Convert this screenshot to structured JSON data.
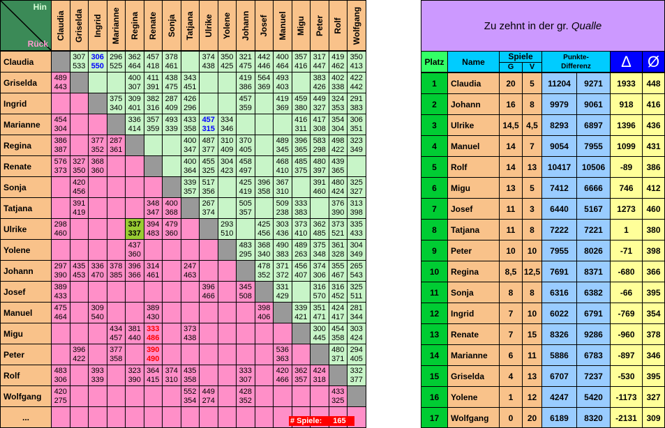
{
  "corner": {
    "top_label": "Hin",
    "bottom_label": "Rück"
  },
  "players": [
    "Claudia",
    "Griselda",
    "Ingrid",
    "Marianne",
    "Regina",
    "Renate",
    "Sonja",
    "Tatjana",
    "Ulrike",
    "Yolene",
    "Johann",
    "Josef",
    "Manuel",
    "Migu",
    "Peter",
    "Rolf",
    "Wolfgang"
  ],
  "ellipsis": "...",
  "games_footer": {
    "label": "# Spiele:",
    "value": "165"
  },
  "matrix": [
    [
      null,
      [
        "307",
        "533"
      ],
      [
        "306",
        "550"
      ],
      [
        "296",
        "525"
      ],
      [
        "362",
        "464"
      ],
      [
        "457",
        "418"
      ],
      [
        "378",
        "461"
      ],
      null,
      [
        "374",
        "438"
      ],
      [
        "350",
        "425"
      ],
      [
        "321",
        "475"
      ],
      [
        "442",
        "446"
      ],
      [
        "400",
        "464"
      ],
      [
        "357",
        "416"
      ],
      [
        "317",
        "447"
      ],
      [
        "419",
        "462"
      ],
      [
        "350",
        "413"
      ]
    ],
    [
      [
        "489",
        "443"
      ],
      null,
      null,
      null,
      [
        "400",
        "307"
      ],
      [
        "411",
        "391"
      ],
      [
        "438",
        "475"
      ],
      [
        "343",
        "451"
      ],
      null,
      null,
      [
        "419",
        "386"
      ],
      [
        "564",
        "369"
      ],
      [
        "493",
        "403"
      ],
      null,
      [
        "383",
        "426"
      ],
      [
        "402",
        "338"
      ],
      [
        "422",
        "442"
      ]
    ],
    [
      null,
      null,
      null,
      [
        "375",
        "340"
      ],
      [
        "309",
        "401"
      ],
      [
        "382",
        "316"
      ],
      [
        "287",
        "409"
      ],
      [
        "426",
        "296"
      ],
      null,
      null,
      [
        "457",
        "359"
      ],
      null,
      [
        "419",
        "369"
      ],
      [
        "459",
        "380"
      ],
      [
        "449",
        "327"
      ],
      [
        "324",
        "353"
      ],
      [
        "291",
        "383"
      ]
    ],
    [
      [
        "454",
        "304"
      ],
      null,
      null,
      null,
      [
        "336",
        "414"
      ],
      [
        "357",
        "359"
      ],
      [
        "493",
        "339"
      ],
      [
        "433",
        "358"
      ],
      [
        "457",
        "315"
      ],
      [
        "334",
        "346"
      ],
      null,
      null,
      null,
      [
        "416",
        "311"
      ],
      [
        "417",
        "308"
      ],
      [
        "354",
        "304"
      ],
      [
        "306",
        "351"
      ]
    ],
    [
      [
        "386",
        "387"
      ],
      null,
      [
        "377",
        "352"
      ],
      [
        "287",
        "361"
      ],
      null,
      null,
      null,
      [
        "400",
        "347"
      ],
      [
        "487",
        "377"
      ],
      [
        "310",
        "409"
      ],
      [
        "370",
        "405"
      ],
      null,
      [
        "489",
        "345"
      ],
      [
        "396",
        "365"
      ],
      [
        "583",
        "298"
      ],
      [
        "498",
        "422"
      ],
      [
        "323",
        "349"
      ]
    ],
    [
      [
        "576",
        "373"
      ],
      [
        "327",
        "350"
      ],
      [
        "368",
        "360"
      ],
      null,
      null,
      null,
      null,
      [
        "400",
        "364"
      ],
      [
        "455",
        "325"
      ],
      [
        "304",
        "423"
      ],
      [
        "458",
        "497"
      ],
      null,
      [
        "468",
        "410"
      ],
      [
        "485",
        "375"
      ],
      [
        "480",
        "397"
      ],
      [
        "439",
        "365"
      ],
      null
    ],
    [
      null,
      [
        "420",
        "456"
      ],
      null,
      null,
      null,
      null,
      null,
      [
        "339",
        "357"
      ],
      [
        "517",
        "356"
      ],
      null,
      [
        "425",
        "419"
      ],
      [
        "396",
        "358"
      ],
      [
        "367",
        "310"
      ],
      null,
      [
        "391",
        "460"
      ],
      [
        "480",
        "424"
      ],
      [
        "325",
        "327"
      ]
    ],
    [
      null,
      [
        "391",
        "419"
      ],
      null,
      null,
      null,
      [
        "348",
        "347"
      ],
      [
        "400",
        "368"
      ],
      null,
      [
        "267",
        "374"
      ],
      null,
      [
        "505",
        "357"
      ],
      null,
      [
        "509",
        "238"
      ],
      [
        "333",
        "383"
      ],
      null,
      [
        "376",
        "390"
      ],
      [
        "313",
        "398"
      ]
    ],
    [
      [
        "298",
        "460"
      ],
      null,
      null,
      null,
      [
        "337",
        "337"
      ],
      [
        "394",
        "483"
      ],
      [
        "479",
        "360"
      ],
      null,
      null,
      [
        "293",
        "510"
      ],
      null,
      [
        "425",
        "456"
      ],
      [
        "303",
        "436"
      ],
      [
        "373",
        "410"
      ],
      [
        "362",
        "485"
      ],
      [
        "373",
        "521"
      ],
      [
        "335",
        "433"
      ]
    ],
    [
      null,
      null,
      null,
      null,
      [
        "437",
        "360"
      ],
      null,
      null,
      null,
      null,
      null,
      [
        "483",
        "295"
      ],
      [
        "368",
        "340"
      ],
      [
        "490",
        "383"
      ],
      [
        "489",
        "263"
      ],
      [
        "375",
        "348"
      ],
      [
        "361",
        "328"
      ],
      [
        "304",
        "349"
      ]
    ],
    [
      [
        "297",
        "390"
      ],
      [
        "435",
        "453"
      ],
      [
        "336",
        "470"
      ],
      [
        "378",
        "385"
      ],
      [
        "396",
        "366"
      ],
      [
        "314",
        "461"
      ],
      null,
      [
        "247",
        "463"
      ],
      null,
      null,
      null,
      [
        "478",
        "352"
      ],
      [
        "371",
        "372"
      ],
      [
        "456",
        "407"
      ],
      [
        "374",
        "306"
      ],
      [
        "355",
        "467"
      ],
      [
        "265",
        "543"
      ]
    ],
    [
      [
        "389",
        "433"
      ],
      null,
      null,
      null,
      null,
      null,
      null,
      null,
      [
        "396",
        "466"
      ],
      null,
      [
        "345",
        "508"
      ],
      null,
      [
        "331",
        "429"
      ],
      null,
      [
        "316",
        "570"
      ],
      [
        "316",
        "452"
      ],
      [
        "325",
        "511"
      ]
    ],
    [
      [
        "475",
        "464"
      ],
      null,
      [
        "309",
        "540"
      ],
      null,
      null,
      [
        "389",
        "430"
      ],
      null,
      null,
      null,
      null,
      null,
      [
        "398",
        "406"
      ],
      null,
      [
        "339",
        "421"
      ],
      [
        "351",
        "471"
      ],
      [
        "424",
        "417"
      ],
      [
        "281",
        "344"
      ]
    ],
    [
      null,
      null,
      null,
      [
        "434",
        "457"
      ],
      [
        "381",
        "440"
      ],
      [
        "333",
        "486"
      ],
      null,
      [
        "373",
        "438"
      ],
      null,
      null,
      null,
      null,
      null,
      null,
      [
        "300",
        "445"
      ],
      [
        "454",
        "358"
      ],
      [
        "303",
        "424"
      ]
    ],
    [
      null,
      [
        "396",
        "422"
      ],
      null,
      [
        "377",
        "358"
      ],
      null,
      [
        "390",
        "490"
      ],
      null,
      null,
      null,
      null,
      null,
      null,
      [
        "536",
        "363"
      ],
      null,
      null,
      [
        "480",
        "371"
      ],
      [
        "294",
        "405"
      ]
    ],
    [
      [
        "483",
        "306"
      ],
      null,
      [
        "393",
        "339"
      ],
      null,
      [
        "323",
        "390"
      ],
      [
        "364",
        "415"
      ],
      [
        "374",
        "310"
      ],
      [
        "435",
        "358"
      ],
      null,
      null,
      [
        "333",
        "307"
      ],
      null,
      [
        "420",
        "466"
      ],
      [
        "362",
        "357"
      ],
      [
        "424",
        "318"
      ],
      null,
      [
        "332",
        "377"
      ]
    ],
    [
      [
        "420",
        "275"
      ],
      null,
      null,
      null,
      null,
      null,
      null,
      [
        "552",
        "354"
      ],
      [
        "449",
        "274"
      ],
      null,
      [
        "428",
        "352"
      ],
      null,
      null,
      null,
      null,
      [
        "433",
        "325"
      ],
      null
    ]
  ],
  "colors": {
    "upper": "#c8f5c8",
    "lower": "#ff8fc8",
    "diagonal": "#999999",
    "names": "#f9c28a",
    "highlight_green": "#99cc33",
    "blue_text": "#0000ff",
    "red_text": "#ff0000"
  },
  "special": {
    "blue": [
      [
        0,
        2
      ],
      [
        3,
        8
      ]
    ],
    "red": [
      [
        13,
        5
      ],
      [
        14,
        5
      ]
    ],
    "green": [
      [
        8,
        4
      ]
    ]
  },
  "ranking": {
    "title_prefix": "Zu zehnt in der gr.",
    "title_italic": "Qualle",
    "headers": {
      "platz": "Platz",
      "name": "Name",
      "spiele": "Spiele",
      "g": "G",
      "v": "V",
      "punkte_line1": "Punkte-",
      "punkte_line2": "Differenz",
      "delta": "Δ",
      "avg": "Ø"
    },
    "rows": [
      {
        "platz": "1",
        "name": "Claudia",
        "g": "20",
        "v": "5",
        "p1": "11204",
        "p2": "9271",
        "delta": "1933",
        "avg": "448"
      },
      {
        "platz": "2",
        "name": "Johann",
        "g": "16",
        "v": "8",
        "p1": "9979",
        "p2": "9061",
        "delta": "918",
        "avg": "416"
      },
      {
        "platz": "3",
        "name": "Ulrike",
        "g": "14,5",
        "v": "4,5",
        "p1": "8293",
        "p2": "6897",
        "delta": "1396",
        "avg": "436"
      },
      {
        "platz": "4",
        "name": "Manuel",
        "g": "14",
        "v": "7",
        "p1": "9054",
        "p2": "7955",
        "delta": "1099",
        "avg": "431"
      },
      {
        "platz": "5",
        "name": "Rolf",
        "g": "14",
        "v": "13",
        "p1": "10417",
        "p2": "10506",
        "delta": "-89",
        "avg": "386"
      },
      {
        "platz": "6",
        "name": "Migu",
        "g": "13",
        "v": "5",
        "p1": "7412",
        "p2": "6666",
        "delta": "746",
        "avg": "412"
      },
      {
        "platz": "7",
        "name": "Josef",
        "g": "11",
        "v": "3",
        "p1": "6440",
        "p2": "5167",
        "delta": "1273",
        "avg": "460"
      },
      {
        "platz": "8",
        "name": "Tatjana",
        "g": "11",
        "v": "8",
        "p1": "7222",
        "p2": "7221",
        "delta": "1",
        "avg": "380"
      },
      {
        "platz": "9",
        "name": "Peter",
        "g": "10",
        "v": "10",
        "p1": "7955",
        "p2": "8026",
        "delta": "-71",
        "avg": "398"
      },
      {
        "platz": "10",
        "name": "Regina",
        "g": "8,5",
        "v": "12,5",
        "p1": "7691",
        "p2": "8371",
        "delta": "-680",
        "avg": "366"
      },
      {
        "platz": "11",
        "name": "Sonja",
        "g": "8",
        "v": "8",
        "p1": "6316",
        "p2": "6382",
        "delta": "-66",
        "avg": "395"
      },
      {
        "platz": "12",
        "name": "Ingrid",
        "g": "7",
        "v": "10",
        "p1": "6022",
        "p2": "6791",
        "delta": "-769",
        "avg": "354"
      },
      {
        "platz": "13",
        "name": "Renate",
        "g": "7",
        "v": "15",
        "p1": "8326",
        "p2": "9286",
        "delta": "-960",
        "avg": "378"
      },
      {
        "platz": "14",
        "name": "Marianne",
        "g": "6",
        "v": "11",
        "p1": "5886",
        "p2": "6783",
        "delta": "-897",
        "avg": "346"
      },
      {
        "platz": "15",
        "name": "Griselda",
        "g": "4",
        "v": "13",
        "p1": "6707",
        "p2": "7237",
        "delta": "-530",
        "avg": "395"
      },
      {
        "platz": "16",
        "name": "Yolene",
        "g": "1",
        "v": "12",
        "p1": "4247",
        "p2": "5420",
        "delta": "-1173",
        "avg": "327"
      },
      {
        "platz": "17",
        "name": "Wolfgang",
        "g": "0",
        "v": "20",
        "p1": "6189",
        "p2": "8320",
        "delta": "-2131",
        "avg": "309"
      }
    ]
  }
}
